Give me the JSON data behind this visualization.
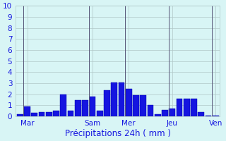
{
  "values": [
    0.2,
    0.9,
    0.3,
    0.4,
    0.4,
    0.5,
    2.0,
    0.5,
    1.5,
    1.5,
    1.8,
    0.5,
    2.4,
    3.1,
    3.1,
    2.5,
    1.9,
    1.9,
    1.0,
    0.2,
    0.6,
    0.7,
    1.6,
    1.6,
    1.6,
    0.4,
    0.1,
    0.1
  ],
  "day_labels": [
    "Mar",
    "Sam",
    "Mer",
    "Jeu",
    "Ven"
  ],
  "day_positions": [
    1,
    10,
    15,
    21,
    27
  ],
  "xlabel": "Précipitations 24h ( mm )",
  "ylim": [
    0,
    10
  ],
  "yticks": [
    0,
    1,
    2,
    3,
    4,
    5,
    6,
    7,
    8,
    9,
    10
  ],
  "bar_color": "#1515e0",
  "bar_edge_color": "#0000aa",
  "bg_color": "#d8f5f5",
  "grid_color": "#b0c8c8",
  "vline_color": "#555577",
  "xlabel_color": "#1515e0",
  "tick_color": "#1515e0"
}
